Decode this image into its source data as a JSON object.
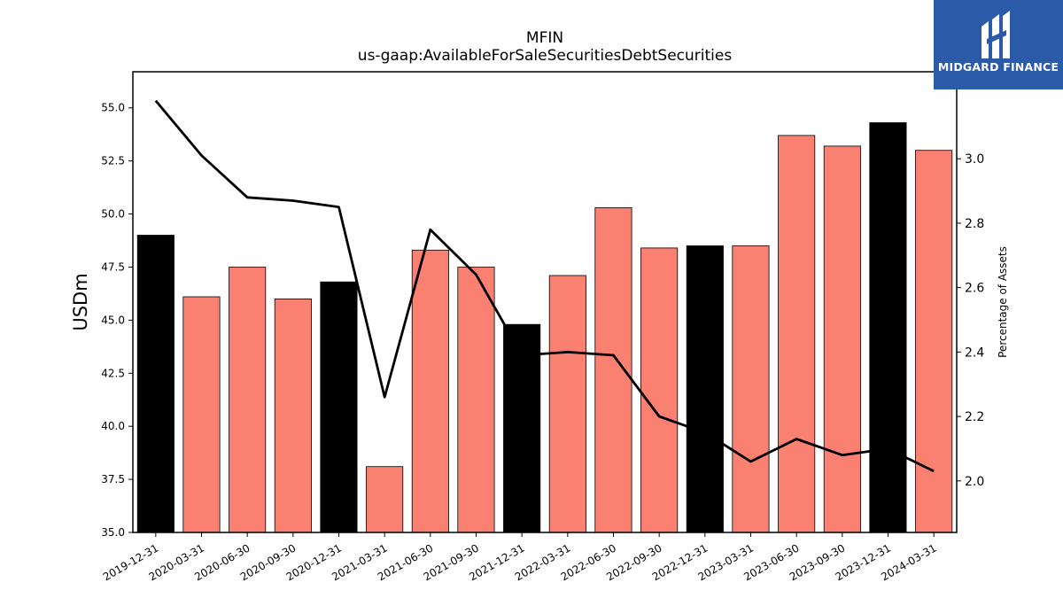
{
  "brand": {
    "name": "MIDGARD FINANCE",
    "logo_color": "#2b5aa8"
  },
  "chart_data": {
    "type": "bar",
    "title": "MFIN",
    "subtitle": "us-gaap:AvailableForSaleSecuritiesDebtSecurities",
    "ylabel": "USDm",
    "ylabel_right": "Percentage of Assets",
    "categories": [
      "2019-12-31",
      "2020-03-31",
      "2020-06-30",
      "2020-09-30",
      "2020-12-31",
      "2021-03-31",
      "2021-06-30",
      "2021-09-30",
      "2021-12-31",
      "2022-03-31",
      "2022-06-30",
      "2022-09-30",
      "2022-12-31",
      "2023-03-31",
      "2023-06-30",
      "2023-09-30",
      "2023-12-31",
      "2024-03-31"
    ],
    "series": [
      {
        "type": "bar",
        "axis": "left",
        "values": [
          49.0,
          46.1,
          47.5,
          46.0,
          46.8,
          38.1,
          48.3,
          47.5,
          44.8,
          47.1,
          50.3,
          48.4,
          48.5,
          48.5,
          53.7,
          53.2,
          54.3,
          53.0
        ],
        "colors": [
          "#000000",
          "#fa8072",
          "#fa8072",
          "#fa8072",
          "#000000",
          "#fa8072",
          "#fa8072",
          "#fa8072",
          "#000000",
          "#fa8072",
          "#fa8072",
          "#fa8072",
          "#000000",
          "#fa8072",
          "#fa8072",
          "#fa8072",
          "#000000",
          "#fa8072"
        ]
      },
      {
        "type": "line",
        "axis": "right",
        "color": "#000000",
        "values": [
          3.18,
          3.01,
          2.88,
          2.87,
          2.85,
          2.26,
          2.78,
          2.64,
          2.39,
          2.4,
          2.39,
          2.2,
          2.15,
          2.06,
          2.13,
          2.08,
          2.1,
          2.03
        ]
      }
    ],
    "ylim": [
      35.0,
      56.7
    ],
    "yticks": [
      "35.0",
      "37.5",
      "40.0",
      "42.5",
      "45.0",
      "47.5",
      "50.0",
      "52.5",
      "55.0"
    ],
    "ylim_right": [
      1.84,
      3.27
    ],
    "yticks_right": [
      "2.0",
      "2.2",
      "2.4",
      "2.6",
      "2.8",
      "3.0"
    ],
    "grid": false,
    "legend": "none"
  }
}
